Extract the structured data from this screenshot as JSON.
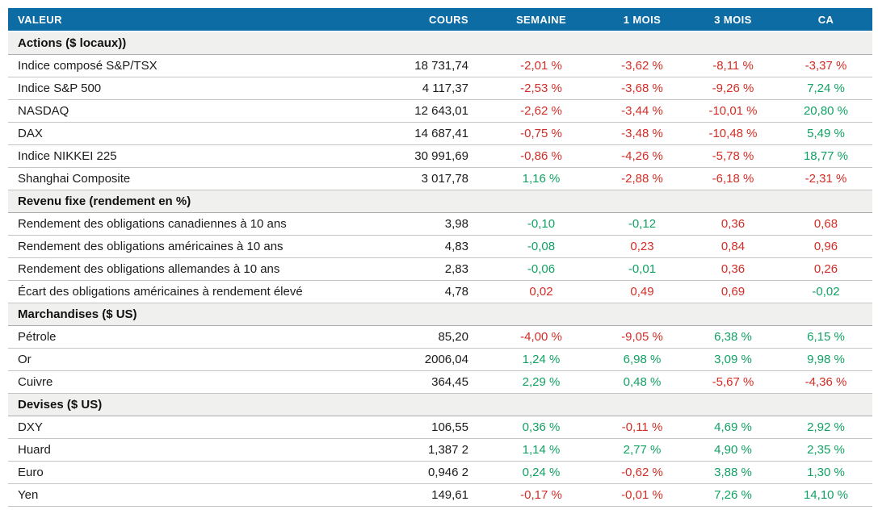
{
  "colors": {
    "header_bg": "#0e6ca4",
    "header_text": "#ffffff",
    "section_bg": "#f0f0ef",
    "row_divider": "#c4c4c4",
    "negative_red": "#d22d26",
    "positive_green": "#12a164"
  },
  "chart_data": {
    "type": "table",
    "title": "",
    "columns": [
      "VALEUR",
      "COURS",
      "SEMAINE",
      "1 MOIS",
      "3 MOIS",
      "CA"
    ],
    "sections": [
      {
        "title": "Actions ($ locaux))",
        "rows": [
          {
            "label": "Indice composé S&P/TSX",
            "cours": "18 731,74",
            "changes": [
              {
                "t": "-2,01 %",
                "c": "red"
              },
              {
                "t": "-3,62 %",
                "c": "red"
              },
              {
                "t": "-8,11 %",
                "c": "red"
              },
              {
                "t": "-3,37 %",
                "c": "red"
              }
            ]
          },
          {
            "label": "Indice S&P 500",
            "cours": "4 117,37",
            "changes": [
              {
                "t": "-2,53 %",
                "c": "red"
              },
              {
                "t": "-3,68 %",
                "c": "red"
              },
              {
                "t": "-9,26 %",
                "c": "red"
              },
              {
                "t": "7,24 %",
                "c": "green"
              }
            ]
          },
          {
            "label": "NASDAQ",
            "cours": "12 643,01",
            "changes": [
              {
                "t": "-2,62 %",
                "c": "red"
              },
              {
                "t": "-3,44 %",
                "c": "red"
              },
              {
                "t": "-10,01 %",
                "c": "red"
              },
              {
                "t": "20,80 %",
                "c": "green"
              }
            ]
          },
          {
            "label": "DAX",
            "cours": "14 687,41",
            "changes": [
              {
                "t": "-0,75 %",
                "c": "red"
              },
              {
                "t": "-3,48 %",
                "c": "red"
              },
              {
                "t": "-10,48 %",
                "c": "red"
              },
              {
                "t": "5,49 %",
                "c": "green"
              }
            ]
          },
          {
            "label": "Indice NIKKEI 225",
            "cours": "30 991,69",
            "changes": [
              {
                "t": "-0,86 %",
                "c": "red"
              },
              {
                "t": "-4,26 %",
                "c": "red"
              },
              {
                "t": "-5,78 %",
                "c": "red"
              },
              {
                "t": "18,77 %",
                "c": "green"
              }
            ]
          },
          {
            "label": "Shanghai Composite",
            "cours": "3 017,78",
            "changes": [
              {
                "t": "1,16 %",
                "c": "green"
              },
              {
                "t": "-2,88 %",
                "c": "red"
              },
              {
                "t": "-6,18 %",
                "c": "red"
              },
              {
                "t": "-2,31 %",
                "c": "red"
              }
            ]
          }
        ]
      },
      {
        "title": "Revenu fixe (rendement en %)",
        "rows": [
          {
            "label": "Rendement des obligations canadiennes à 10 ans",
            "cours": "3,98",
            "changes": [
              {
                "t": "-0,10",
                "c": "green"
              },
              {
                "t": "-0,12",
                "c": "green"
              },
              {
                "t": "0,36",
                "c": "red"
              },
              {
                "t": "0,68",
                "c": "red"
              }
            ]
          },
          {
            "label": "Rendement des obligations américaines à 10 ans",
            "cours": "4,83",
            "changes": [
              {
                "t": "-0,08",
                "c": "green"
              },
              {
                "t": "0,23",
                "c": "red"
              },
              {
                "t": "0,84",
                "c": "red"
              },
              {
                "t": "0,96",
                "c": "red"
              }
            ]
          },
          {
            "label": "Rendement des obligations allemandes à 10 ans",
            "cours": "2,83",
            "changes": [
              {
                "t": "-0,06",
                "c": "green"
              },
              {
                "t": "-0,01",
                "c": "green"
              },
              {
                "t": "0,36",
                "c": "red"
              },
              {
                "t": "0,26",
                "c": "red"
              }
            ]
          },
          {
            "label": "Écart des obligations américaines à rendement élevé",
            "cours": "4,78",
            "changes": [
              {
                "t": "0,02",
                "c": "red"
              },
              {
                "t": "0,49",
                "c": "red"
              },
              {
                "t": "0,69",
                "c": "red"
              },
              {
                "t": "-0,02",
                "c": "green"
              }
            ]
          }
        ]
      },
      {
        "title": "Marchandises ($ US)",
        "rows": [
          {
            "label": "Pétrole",
            "cours": "85,20",
            "changes": [
              {
                "t": "-4,00 %",
                "c": "red"
              },
              {
                "t": "-9,05 %",
                "c": "red"
              },
              {
                "t": "6,38 %",
                "c": "green"
              },
              {
                "t": "6,15 %",
                "c": "green"
              }
            ]
          },
          {
            "label": "Or",
            "cours": "2006,04",
            "changes": [
              {
                "t": "1,24 %",
                "c": "green"
              },
              {
                "t": "6,98 %",
                "c": "green"
              },
              {
                "t": "3,09 %",
                "c": "green"
              },
              {
                "t": "9,98 %",
                "c": "green"
              }
            ]
          },
          {
            "label": "Cuivre",
            "cours": "364,45",
            "changes": [
              {
                "t": "2,29 %",
                "c": "green"
              },
              {
                "t": "0,48 %",
                "c": "green"
              },
              {
                "t": "-5,67 %",
                "c": "red"
              },
              {
                "t": "-4,36 %",
                "c": "red"
              }
            ]
          }
        ]
      },
      {
        "title": "Devises ($ US)",
        "rows": [
          {
            "label": "DXY",
            "cours": "106,55",
            "changes": [
              {
                "t": "0,36 %",
                "c": "green"
              },
              {
                "t": "-0,11 %",
                "c": "red"
              },
              {
                "t": "4,69 %",
                "c": "green"
              },
              {
                "t": "2,92 %",
                "c": "green"
              }
            ]
          },
          {
            "label": "Huard",
            "cours": "1,387 2",
            "changes": [
              {
                "t": "1,14 %",
                "c": "green"
              },
              {
                "t": "2,77 %",
                "c": "green"
              },
              {
                "t": "4,90 %",
                "c": "green"
              },
              {
                "t": "2,35 %",
                "c": "green"
              }
            ]
          },
          {
            "label": "Euro",
            "cours": "0,946 2",
            "changes": [
              {
                "t": "0,24 %",
                "c": "green"
              },
              {
                "t": "-0,62 %",
                "c": "red"
              },
              {
                "t": "3,88 %",
                "c": "green"
              },
              {
                "t": "1,30 %",
                "c": "green"
              }
            ]
          },
          {
            "label": "Yen",
            "cours": "149,61",
            "changes": [
              {
                "t": "-0,17 %",
                "c": "red"
              },
              {
                "t": "-0,01 %",
                "c": "red"
              },
              {
                "t": "7,26 %",
                "c": "green"
              },
              {
                "t": "14,10 %",
                "c": "green"
              }
            ]
          }
        ]
      }
    ]
  }
}
